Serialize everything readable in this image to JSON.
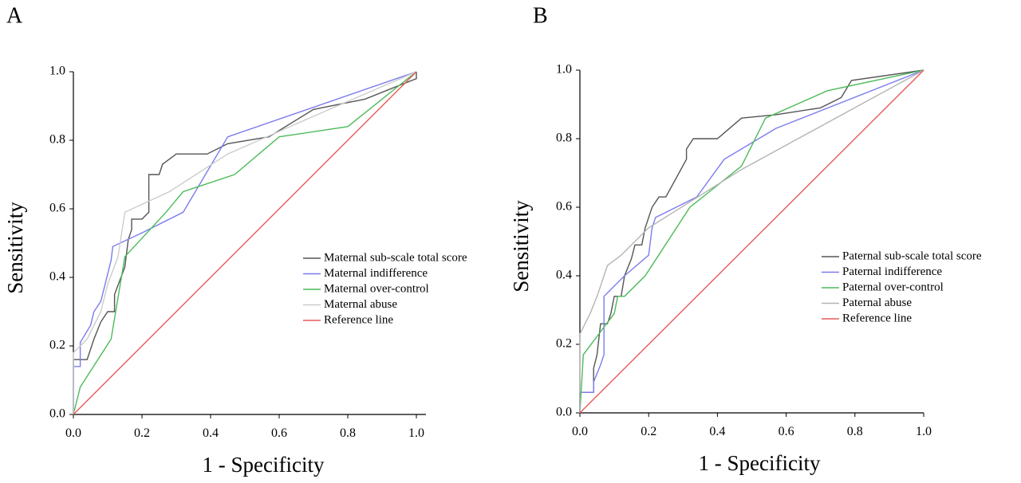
{
  "chart_data": [
    {
      "type": "line",
      "panel_label": "A",
      "x_label": "1 - Specificity",
      "y_label": "Sensitivity",
      "xlim": [
        0,
        1
      ],
      "ylim": [
        0,
        1
      ],
      "xticks": [
        {
          "value": 0,
          "label": "0.0"
        },
        0.2,
        0.4,
        0.6,
        0.8,
        {
          "value": 1,
          "label": "1.0"
        }
      ],
      "yticks": [
        {
          "value": 0,
          "label": "0.0"
        },
        0.2,
        0.4,
        0.6,
        0.8,
        {
          "value": 1,
          "label": "1.0"
        }
      ],
      "series": [
        {
          "name": "Maternal sub-scale total score",
          "color": "#555555",
          "x": [
            0,
            0,
            0.04,
            0.06,
            0.08,
            0.1,
            0.12,
            0.12,
            0.15,
            0.16,
            0.17,
            0.17,
            0.2,
            0.22,
            0.22,
            0.25,
            0.26,
            0.3,
            0.39,
            0.45,
            0.57,
            0.7,
            0.8,
            0.85,
            1,
            1
          ],
          "values": [
            0,
            0.16,
            0.16,
            0.22,
            0.27,
            0.3,
            0.3,
            0.35,
            0.43,
            0.51,
            0.54,
            0.57,
            0.57,
            0.59,
            0.7,
            0.7,
            0.73,
            0.76,
            0.76,
            0.79,
            0.81,
            0.89,
            0.91,
            0.92,
            0.98,
            1
          ]
        },
        {
          "name": "Maternal indifference",
          "color": "#7b7bef",
          "x": [
            0,
            0,
            0.02,
            0.02,
            0.05,
            0.06,
            0.08,
            0.09,
            0.11,
            0.115,
            0.2,
            0.32,
            0.45,
            1
          ],
          "values": [
            0,
            0.14,
            0.14,
            0.21,
            0.26,
            0.3,
            0.33,
            0.37,
            0.45,
            0.49,
            0.53,
            0.59,
            0.81,
            1
          ]
        },
        {
          "name": "Maternal over-control",
          "color": "#4cbb5a",
          "x": [
            0,
            0.02,
            0.11,
            0.15,
            0.27,
            0.32,
            0.47,
            0.6,
            0.8,
            1
          ],
          "values": [
            0,
            0.08,
            0.22,
            0.46,
            0.59,
            0.65,
            0.7,
            0.81,
            0.84,
            1
          ]
        },
        {
          "name": "Maternal abuse",
          "color": "#cccccc",
          "x": [
            0,
            0,
            0.04,
            0.08,
            0.1,
            0.13,
            0.15,
            0.28,
            0.45,
            0.7,
            1
          ],
          "values": [
            0,
            0.18,
            0.22,
            0.3,
            0.38,
            0.46,
            0.59,
            0.65,
            0.76,
            0.87,
            1
          ]
        },
        {
          "name": "Reference line",
          "color": "#e85a5a",
          "x": [
            0,
            1
          ],
          "values": [
            0,
            1
          ]
        }
      ]
    },
    {
      "type": "line",
      "panel_label": "B",
      "x_label": "1 - Specificity",
      "y_label": "Sensitivity",
      "xlim": [
        0,
        1
      ],
      "ylim": [
        0,
        1
      ],
      "xticks": [
        {
          "value": 0,
          "label": "0.0"
        },
        0.2,
        0.4,
        0.6,
        0.8,
        {
          "value": 1,
          "label": "1.0"
        }
      ],
      "yticks": [
        {
          "value": 0,
          "label": "0.0"
        },
        0.2,
        0.4,
        0.6,
        0.8,
        {
          "value": 1,
          "label": "1.0"
        }
      ],
      "series": [
        {
          "name": "Paternal sub-scale total score",
          "color": "#555555",
          "x": [
            0,
            0,
            0.04,
            0.04,
            0.05,
            0.06,
            0.08,
            0.09,
            0.1,
            0.12,
            0.13,
            0.15,
            0.16,
            0.18,
            0.19,
            0.21,
            0.23,
            0.25,
            0.31,
            0.31,
            0.33,
            0.4,
            0.47,
            0.57,
            0.7,
            0.76,
            0.79,
            1
          ],
          "values": [
            0,
            0.06,
            0.06,
            0.13,
            0.17,
            0.26,
            0.26,
            0.29,
            0.34,
            0.34,
            0.4,
            0.45,
            0.49,
            0.49,
            0.54,
            0.6,
            0.63,
            0.63,
            0.74,
            0.77,
            0.8,
            0.8,
            0.86,
            0.87,
            0.89,
            0.92,
            0.97,
            1
          ]
        },
        {
          "name": "Paternal indifference",
          "color": "#7b7bef",
          "x": [
            0,
            0,
            0.04,
            0.04,
            0.06,
            0.07,
            0.07,
            0.13,
            0.2,
            0.21,
            0.22,
            0.34,
            0.42,
            0.57,
            1
          ],
          "values": [
            0,
            0.06,
            0.06,
            0.09,
            0.14,
            0.17,
            0.34,
            0.4,
            0.46,
            0.54,
            0.57,
            0.63,
            0.74,
            0.83,
            1
          ]
        },
        {
          "name": "Paternal over-control",
          "color": "#4cbb5a",
          "x": [
            0,
            0.01,
            0.1,
            0.11,
            0.13,
            0.19,
            0.32,
            0.47,
            0.54,
            0.72,
            1
          ],
          "values": [
            0,
            0.17,
            0.29,
            0.34,
            0.34,
            0.4,
            0.6,
            0.72,
            0.86,
            0.94,
            1
          ]
        },
        {
          "name": "Paternal  abuse",
          "color": "#b4b4b4",
          "x": [
            0,
            0,
            0.03,
            0.05,
            0.08,
            0.12,
            0.2,
            0.47,
            1
          ],
          "values": [
            0,
            0.23,
            0.29,
            0.34,
            0.43,
            0.46,
            0.54,
            0.71,
            1
          ]
        },
        {
          "name": "Reference line",
          "color": "#e85a5a",
          "x": [
            0,
            1
          ],
          "values": [
            0,
            1
          ]
        }
      ]
    }
  ]
}
